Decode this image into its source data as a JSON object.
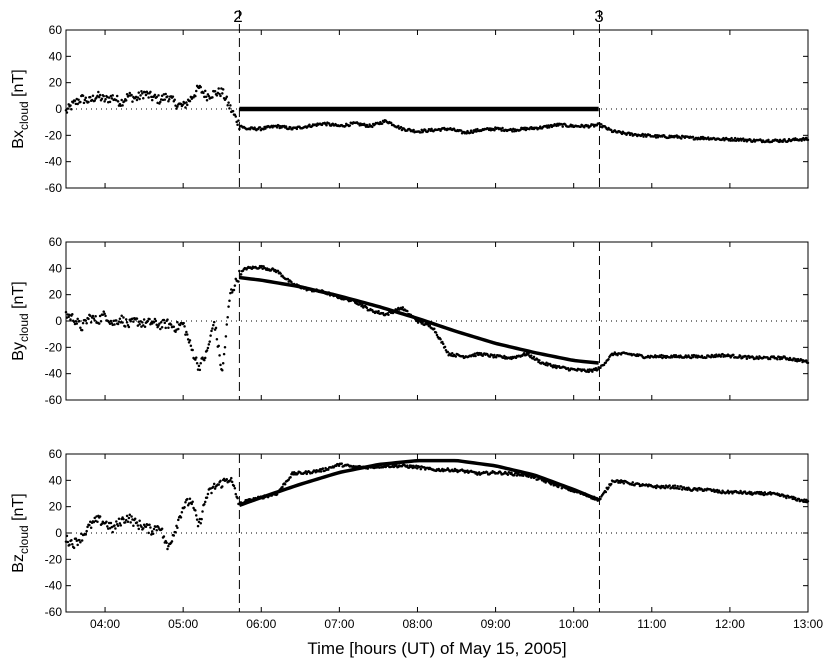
{
  "figure": {
    "xlabel": "Time [hours (UT) of May 15, 2005]",
    "boundary_labels": [
      "2",
      "3"
    ]
  },
  "chart_data": [
    {
      "type": "scatter",
      "panel": "Bx",
      "ylabel_main": "Bx",
      "ylabel_sub": "cloud",
      "ylabel_unit": "[nT]",
      "xlim": [
        3.5,
        13.0
      ],
      "ylim": [
        -60,
        60
      ],
      "yticks": [
        -60,
        -40,
        -20,
        0,
        20,
        40,
        60
      ],
      "xticks": [
        4,
        5,
        6,
        7,
        8,
        9,
        10,
        11,
        12,
        13
      ],
      "xtick_labels": [
        "04:00",
        "05:00",
        "06:00",
        "07:00",
        "08:00",
        "09:00",
        "10:00",
        "11:00",
        "12:00",
        "13:00"
      ],
      "boundaries": [
        5.72,
        10.33
      ],
      "zero_line": "dotted",
      "observed": [
        [
          3.5,
          -2
        ],
        [
          3.6,
          4
        ],
        [
          3.7,
          8
        ],
        [
          3.8,
          6
        ],
        [
          3.9,
          10
        ],
        [
          4.0,
          7
        ],
        [
          4.1,
          9
        ],
        [
          4.2,
          5
        ],
        [
          4.3,
          10
        ],
        [
          4.4,
          8
        ],
        [
          4.5,
          12
        ],
        [
          4.6,
          9
        ],
        [
          4.7,
          7
        ],
        [
          4.8,
          10
        ],
        [
          4.9,
          4
        ],
        [
          5.0,
          2
        ],
        [
          5.1,
          8
        ],
        [
          5.2,
          16
        ],
        [
          5.3,
          10
        ],
        [
          5.4,
          12
        ],
        [
          5.5,
          13
        ],
        [
          5.6,
          1
        ],
        [
          5.72,
          -12
        ],
        [
          5.8,
          -15
        ],
        [
          6.0,
          -15
        ],
        [
          6.2,
          -13
        ],
        [
          6.4,
          -15
        ],
        [
          6.6,
          -13
        ],
        [
          6.8,
          -11
        ],
        [
          7.0,
          -13
        ],
        [
          7.2,
          -11
        ],
        [
          7.4,
          -13
        ],
        [
          7.6,
          -9
        ],
        [
          7.8,
          -15
        ],
        [
          8.0,
          -17
        ],
        [
          8.2,
          -16
        ],
        [
          8.4,
          -15
        ],
        [
          8.6,
          -18
        ],
        [
          8.8,
          -16
        ],
        [
          9.0,
          -15
        ],
        [
          9.2,
          -16
        ],
        [
          9.4,
          -15
        ],
        [
          9.6,
          -14
        ],
        [
          9.8,
          -12
        ],
        [
          10.0,
          -13
        ],
        [
          10.2,
          -13
        ],
        [
          10.33,
          -12
        ],
        [
          10.5,
          -17
        ],
        [
          10.7,
          -19
        ],
        [
          10.9,
          -20
        ],
        [
          11.1,
          -21
        ],
        [
          11.3,
          -21
        ],
        [
          11.5,
          -22
        ],
        [
          11.7,
          -22
        ],
        [
          11.9,
          -23
        ],
        [
          12.1,
          -23
        ],
        [
          12.3,
          -24
        ],
        [
          12.5,
          -24
        ],
        [
          12.7,
          -24
        ],
        [
          12.9,
          -23
        ],
        [
          13.0,
          -23
        ]
      ],
      "model": [
        [
          5.72,
          0
        ],
        [
          10.33,
          0
        ]
      ]
    },
    {
      "type": "scatter",
      "panel": "By",
      "ylabel_main": "By",
      "ylabel_sub": "cloud",
      "ylabel_unit": "[nT]",
      "xlim": [
        3.5,
        13.0
      ],
      "ylim": [
        -60,
        60
      ],
      "yticks": [
        -60,
        -40,
        -20,
        0,
        20,
        40,
        60
      ],
      "xticks": [
        4,
        5,
        6,
        7,
        8,
        9,
        10,
        11,
        12,
        13
      ],
      "xtick_labels": [
        "04:00",
        "05:00",
        "06:00",
        "07:00",
        "08:00",
        "09:00",
        "10:00",
        "11:00",
        "12:00",
        "13:00"
      ],
      "boundaries": [
        5.72,
        10.33
      ],
      "zero_line": "dotted",
      "observed": [
        [
          3.5,
          5
        ],
        [
          3.6,
          2
        ],
        [
          3.7,
          -5
        ],
        [
          3.8,
          3
        ],
        [
          3.9,
          0
        ],
        [
          4.0,
          5
        ],
        [
          4.1,
          -2
        ],
        [
          4.2,
          2
        ],
        [
          4.3,
          -3
        ],
        [
          4.4,
          0
        ],
        [
          4.5,
          -2
        ],
        [
          4.6,
          -1
        ],
        [
          4.7,
          -3
        ],
        [
          4.8,
          -2
        ],
        [
          4.9,
          -5
        ],
        [
          5.0,
          -2
        ],
        [
          5.1,
          -20
        ],
        [
          5.2,
          -35
        ],
        [
          5.3,
          -25
        ],
        [
          5.4,
          0
        ],
        [
          5.5,
          -40
        ],
        [
          5.6,
          20
        ],
        [
          5.72,
          35
        ],
        [
          5.8,
          40
        ],
        [
          6.0,
          41
        ],
        [
          6.2,
          38
        ],
        [
          6.4,
          28
        ],
        [
          6.6,
          24
        ],
        [
          6.8,
          22
        ],
        [
          7.0,
          18
        ],
        [
          7.2,
          15
        ],
        [
          7.4,
          8
        ],
        [
          7.6,
          5
        ],
        [
          7.8,
          10
        ],
        [
          8.0,
          0
        ],
        [
          8.2,
          -5
        ],
        [
          8.4,
          -25
        ],
        [
          8.6,
          -27
        ],
        [
          8.8,
          -25
        ],
        [
          9.0,
          -27
        ],
        [
          9.2,
          -28
        ],
        [
          9.4,
          -25
        ],
        [
          9.6,
          -32
        ],
        [
          9.8,
          -35
        ],
        [
          10.0,
          -37
        ],
        [
          10.2,
          -38
        ],
        [
          10.33,
          -36
        ],
        [
          10.5,
          -25
        ],
        [
          10.7,
          -25
        ],
        [
          10.9,
          -27
        ],
        [
          11.1,
          -27
        ],
        [
          11.3,
          -27
        ],
        [
          11.5,
          -27
        ],
        [
          11.7,
          -27
        ],
        [
          11.9,
          -26
        ],
        [
          12.1,
          -27
        ],
        [
          12.3,
          -28
        ],
        [
          12.5,
          -28
        ],
        [
          12.7,
          -28
        ],
        [
          12.9,
          -30
        ],
        [
          13.0,
          -31
        ]
      ],
      "model": [
        [
          5.72,
          33
        ],
        [
          6.0,
          31
        ],
        [
          6.5,
          26
        ],
        [
          7.0,
          19
        ],
        [
          7.5,
          11
        ],
        [
          8.0,
          2
        ],
        [
          8.5,
          -8
        ],
        [
          9.0,
          -17
        ],
        [
          9.5,
          -24
        ],
        [
          10.0,
          -30
        ],
        [
          10.33,
          -32
        ]
      ]
    },
    {
      "type": "scatter",
      "panel": "Bz",
      "ylabel_main": "Bz",
      "ylabel_sub": "cloud",
      "ylabel_unit": "[nT]",
      "xlim": [
        3.5,
        13.0
      ],
      "ylim": [
        -60,
        60
      ],
      "yticks": [
        -60,
        -40,
        -20,
        0,
        20,
        40,
        60
      ],
      "xticks": [
        4,
        5,
        6,
        7,
        8,
        9,
        10,
        11,
        12,
        13
      ],
      "xtick_labels": [
        "04:00",
        "05:00",
        "06:00",
        "07:00",
        "08:00",
        "09:00",
        "10:00",
        "11:00",
        "12:00",
        "13:00"
      ],
      "boundaries": [
        5.72,
        10.33
      ],
      "zero_line": "dotted",
      "observed": [
        [
          3.5,
          -5
        ],
        [
          3.6,
          -8
        ],
        [
          3.7,
          -3
        ],
        [
          3.8,
          5
        ],
        [
          3.9,
          10
        ],
        [
          4.0,
          8
        ],
        [
          4.1,
          3
        ],
        [
          4.2,
          9
        ],
        [
          4.3,
          12
        ],
        [
          4.4,
          7
        ],
        [
          4.5,
          5
        ],
        [
          4.6,
          2
        ],
        [
          4.7,
          6
        ],
        [
          4.8,
          -12
        ],
        [
          4.9,
          3
        ],
        [
          5.0,
          20
        ],
        [
          5.1,
          25
        ],
        [
          5.2,
          5
        ],
        [
          5.3,
          28
        ],
        [
          5.4,
          35
        ],
        [
          5.5,
          38
        ],
        [
          5.6,
          42
        ],
        [
          5.72,
          22
        ],
        [
          5.8,
          24
        ],
        [
          6.0,
          27
        ],
        [
          6.2,
          30
        ],
        [
          6.4,
          45
        ],
        [
          6.6,
          46
        ],
        [
          6.8,
          48
        ],
        [
          7.0,
          52
        ],
        [
          7.2,
          50
        ],
        [
          7.4,
          50
        ],
        [
          7.6,
          51
        ],
        [
          7.8,
          51
        ],
        [
          8.0,
          50
        ],
        [
          8.2,
          48
        ],
        [
          8.4,
          48
        ],
        [
          8.6,
          47
        ],
        [
          8.8,
          45
        ],
        [
          9.0,
          46
        ],
        [
          9.2,
          45
        ],
        [
          9.4,
          44
        ],
        [
          9.6,
          40
        ],
        [
          9.8,
          36
        ],
        [
          10.0,
          32
        ],
        [
          10.2,
          28
        ],
        [
          10.33,
          25
        ],
        [
          10.5,
          40
        ],
        [
          10.7,
          38
        ],
        [
          10.9,
          36
        ],
        [
          11.1,
          35
        ],
        [
          11.3,
          35
        ],
        [
          11.5,
          33
        ],
        [
          11.7,
          33
        ],
        [
          11.9,
          31
        ],
        [
          12.1,
          31
        ],
        [
          12.3,
          30
        ],
        [
          12.5,
          30
        ],
        [
          12.7,
          28
        ],
        [
          12.9,
          25
        ],
        [
          13.0,
          24
        ]
      ],
      "model": [
        [
          5.72,
          21
        ],
        [
          6.0,
          27
        ],
        [
          6.5,
          37
        ],
        [
          7.0,
          46
        ],
        [
          7.5,
          52
        ],
        [
          8.0,
          55
        ],
        [
          8.5,
          55
        ],
        [
          9.0,
          51
        ],
        [
          9.5,
          44
        ],
        [
          10.0,
          33
        ],
        [
          10.33,
          25
        ]
      ]
    }
  ]
}
